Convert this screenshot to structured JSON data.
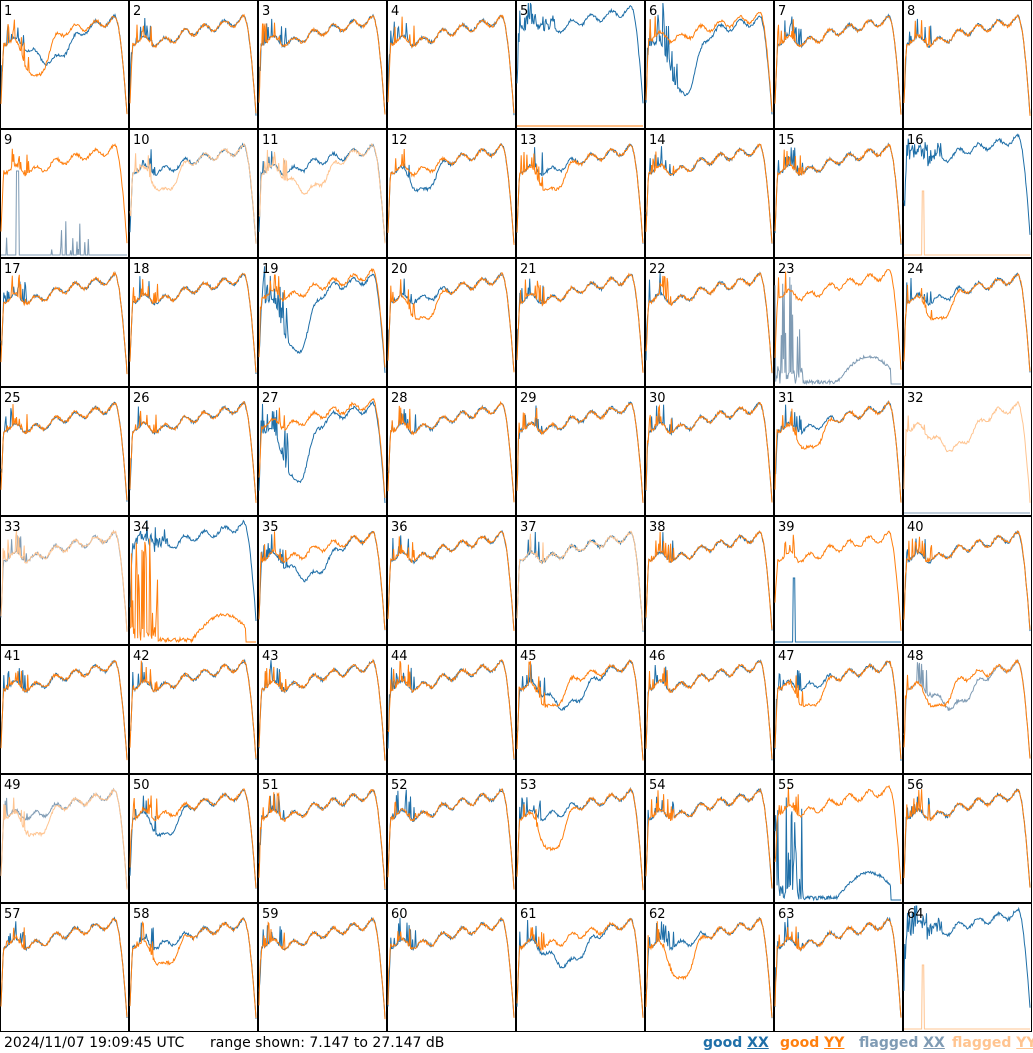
{
  "footer": {
    "timestamp": "2024/11/07 19:09:45 UTC",
    "range_text": "range shown: 7.147 to 27.147 dB",
    "legend": [
      {
        "word": "good",
        "pol": "XX",
        "color": "#1f6fa8"
      },
      {
        "word": "good",
        "pol": "YY",
        "color": "#ff7f0e"
      },
      {
        "word": "flagged",
        "pol": "XX",
        "color": "#7f9bb4"
      },
      {
        "word": "flagged",
        "pol": "YY",
        "color": "#ffc490"
      }
    ]
  },
  "colors": {
    "good_xx": "#1f6fa8",
    "good_yy": "#ff7f0e",
    "flagged_xx": "#7f9bb4",
    "flagged_yy": "#ffc490"
  },
  "chart_data": {
    "type": "line",
    "ylim": [
      7.147,
      27.147
    ],
    "y_unit": "dB",
    "panels": [
      {
        "label": "1",
        "xx": "good",
        "yy": "good",
        "xx_shape": "dip_mid",
        "yy_shape": "deep_dip_left"
      },
      {
        "label": "2",
        "xx": "good",
        "yy": "good",
        "xx_shape": "normal",
        "yy_shape": "normal"
      },
      {
        "label": "3",
        "xx": "good",
        "yy": "good",
        "xx_shape": "normal",
        "yy_shape": "normal"
      },
      {
        "label": "4",
        "xx": "good",
        "yy": "good",
        "xx_shape": "normal",
        "yy_shape": "normal"
      },
      {
        "label": "5",
        "xx": "good",
        "yy": "good",
        "xx_shape": "high_noisy",
        "yy_shape": "floor"
      },
      {
        "label": "6",
        "xx": "good",
        "yy": "good",
        "xx_shape": "deep_dip",
        "yy_shape": "high"
      },
      {
        "label": "7",
        "xx": "good",
        "yy": "good",
        "xx_shape": "normal",
        "yy_shape": "normal"
      },
      {
        "label": "8",
        "xx": "good",
        "yy": "good",
        "xx_shape": "normal",
        "yy_shape": "normal"
      },
      {
        "label": "9",
        "xx": "flagged",
        "yy": "good",
        "xx_shape": "spikes_low",
        "yy_shape": "normal"
      },
      {
        "label": "10",
        "xx": "good",
        "yy": "flagged",
        "xx_shape": "normal",
        "yy_shape": "dip_left"
      },
      {
        "label": "11",
        "xx": "good",
        "yy": "flagged",
        "xx_shape": "normal",
        "yy_shape": "dip_mid"
      },
      {
        "label": "12",
        "xx": "good",
        "yy": "good",
        "xx_shape": "dip_left",
        "yy_shape": "normal"
      },
      {
        "label": "13",
        "xx": "good",
        "yy": "good",
        "xx_shape": "normal",
        "yy_shape": "dip_left"
      },
      {
        "label": "14",
        "xx": "good",
        "yy": "good",
        "xx_shape": "normal",
        "yy_shape": "normal"
      },
      {
        "label": "15",
        "xx": "good",
        "yy": "good",
        "xx_shape": "normal",
        "yy_shape": "normal"
      },
      {
        "label": "16",
        "xx": "good",
        "yy": "flagged",
        "xx_shape": "high_noisy",
        "yy_shape": "floor_spike"
      },
      {
        "label": "17",
        "xx": "good",
        "yy": "good",
        "xx_shape": "normal",
        "yy_shape": "normal"
      },
      {
        "label": "18",
        "xx": "good",
        "yy": "good",
        "xx_shape": "normal",
        "yy_shape": "normal"
      },
      {
        "label": "19",
        "xx": "good",
        "yy": "good",
        "xx_shape": "deep_dip",
        "yy_shape": "high"
      },
      {
        "label": "20",
        "xx": "good",
        "yy": "good",
        "xx_shape": "normal",
        "yy_shape": "dip_left"
      },
      {
        "label": "21",
        "xx": "good",
        "yy": "good",
        "xx_shape": "normal",
        "yy_shape": "normal"
      },
      {
        "label": "22",
        "xx": "good",
        "yy": "good",
        "xx_shape": "normal",
        "yy_shape": "normal"
      },
      {
        "label": "23",
        "xx": "flagged",
        "yy": "good",
        "xx_shape": "low_spikes_ramp",
        "yy_shape": "high"
      },
      {
        "label": "24",
        "xx": "good",
        "yy": "good",
        "xx_shape": "normal",
        "yy_shape": "dip_left"
      },
      {
        "label": "25",
        "xx": "good",
        "yy": "good",
        "xx_shape": "normal",
        "yy_shape": "normal"
      },
      {
        "label": "26",
        "xx": "good",
        "yy": "good",
        "xx_shape": "normal",
        "yy_shape": "normal"
      },
      {
        "label": "27",
        "xx": "good",
        "yy": "good",
        "xx_shape": "deep_dip",
        "yy_shape": "high"
      },
      {
        "label": "28",
        "xx": "good",
        "yy": "good",
        "xx_shape": "normal",
        "yy_shape": "normal"
      },
      {
        "label": "29",
        "xx": "good",
        "yy": "good",
        "xx_shape": "normal",
        "yy_shape": "normal"
      },
      {
        "label": "30",
        "xx": "good",
        "yy": "good",
        "xx_shape": "normal",
        "yy_shape": "normal"
      },
      {
        "label": "31",
        "xx": "good",
        "yy": "good",
        "xx_shape": "normal",
        "yy_shape": "dip_left"
      },
      {
        "label": "32",
        "xx": "flagged",
        "yy": "flagged",
        "xx_shape": "floor",
        "yy_shape": "dip_mid"
      },
      {
        "label": "33",
        "xx": "flagged",
        "yy": "flagged",
        "xx_shape": "normal",
        "yy_shape": "normal"
      },
      {
        "label": "34",
        "xx": "good",
        "yy": "good",
        "xx_shape": "high_noisy",
        "yy_shape": "low_spikes_ramp"
      },
      {
        "label": "35",
        "xx": "good",
        "yy": "good",
        "xx_shape": "dip_mid",
        "yy_shape": "normal"
      },
      {
        "label": "36",
        "xx": "good",
        "yy": "good",
        "xx_shape": "normal",
        "yy_shape": "normal"
      },
      {
        "label": "37",
        "xx": "good",
        "yy": "flagged",
        "xx_shape": "normal",
        "yy_shape": "normal"
      },
      {
        "label": "38",
        "xx": "good",
        "yy": "good",
        "xx_shape": "normal",
        "yy_shape": "normal"
      },
      {
        "label": "39",
        "xx": "good",
        "yy": "good",
        "xx_shape": "floor_spike",
        "yy_shape": "normal"
      },
      {
        "label": "40",
        "xx": "good",
        "yy": "good",
        "xx_shape": "normal",
        "yy_shape": "normal"
      },
      {
        "label": "41",
        "xx": "good",
        "yy": "good",
        "xx_shape": "normal",
        "yy_shape": "normal"
      },
      {
        "label": "42",
        "xx": "good",
        "yy": "good",
        "xx_shape": "normal",
        "yy_shape": "normal"
      },
      {
        "label": "43",
        "xx": "good",
        "yy": "good",
        "xx_shape": "normal",
        "yy_shape": "normal"
      },
      {
        "label": "44",
        "xx": "good",
        "yy": "good",
        "xx_shape": "normal",
        "yy_shape": "normal"
      },
      {
        "label": "45",
        "xx": "good",
        "yy": "good",
        "xx_shape": "dip_mid",
        "yy_shape": "dip_left"
      },
      {
        "label": "46",
        "xx": "good",
        "yy": "good",
        "xx_shape": "normal",
        "yy_shape": "normal"
      },
      {
        "label": "47",
        "xx": "good",
        "yy": "good",
        "xx_shape": "normal",
        "yy_shape": "dip_left"
      },
      {
        "label": "48",
        "xx": "flagged",
        "yy": "good",
        "xx_shape": "dip_mid",
        "yy_shape": "dip_left"
      },
      {
        "label": "49",
        "xx": "flagged",
        "yy": "flagged",
        "xx_shape": "normal",
        "yy_shape": "dip_left"
      },
      {
        "label": "50",
        "xx": "good",
        "yy": "good",
        "xx_shape": "dip_left",
        "yy_shape": "normal"
      },
      {
        "label": "51",
        "xx": "good",
        "yy": "good",
        "xx_shape": "normal",
        "yy_shape": "normal"
      },
      {
        "label": "52",
        "xx": "good",
        "yy": "good",
        "xx_shape": "normal",
        "yy_shape": "normal"
      },
      {
        "label": "53",
        "xx": "good",
        "yy": "good",
        "xx_shape": "normal",
        "yy_shape": "deep_dip_left"
      },
      {
        "label": "54",
        "xx": "good",
        "yy": "good",
        "xx_shape": "normal",
        "yy_shape": "normal"
      },
      {
        "label": "55",
        "xx": "good",
        "yy": "good",
        "xx_shape": "low_spikes_ramp",
        "yy_shape": "high"
      },
      {
        "label": "56",
        "xx": "good",
        "yy": "good",
        "xx_shape": "normal",
        "yy_shape": "normal"
      },
      {
        "label": "57",
        "xx": "good",
        "yy": "good",
        "xx_shape": "normal",
        "yy_shape": "normal"
      },
      {
        "label": "58",
        "xx": "good",
        "yy": "good",
        "xx_shape": "normal",
        "yy_shape": "dip_left"
      },
      {
        "label": "59",
        "xx": "good",
        "yy": "good",
        "xx_shape": "normal",
        "yy_shape": "normal"
      },
      {
        "label": "60",
        "xx": "good",
        "yy": "good",
        "xx_shape": "normal",
        "yy_shape": "normal"
      },
      {
        "label": "61",
        "xx": "good",
        "yy": "good",
        "xx_shape": "dip_mid",
        "yy_shape": "normal"
      },
      {
        "label": "62",
        "xx": "good",
        "yy": "good",
        "xx_shape": "normal",
        "yy_shape": "deep_dip_left"
      },
      {
        "label": "63",
        "xx": "good",
        "yy": "good",
        "xx_shape": "normal",
        "yy_shape": "normal"
      },
      {
        "label": "64",
        "xx": "good",
        "yy": "flagged",
        "xx_shape": "high_noisy",
        "yy_shape": "floor_spike"
      }
    ]
  }
}
